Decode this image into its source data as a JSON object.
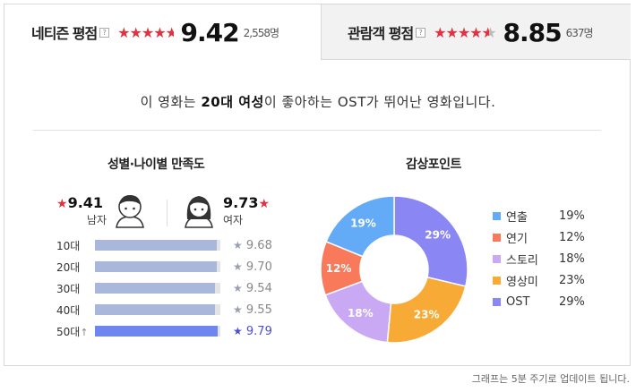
{
  "ratings": {
    "netizen": {
      "label": "네티즌 평점",
      "help": "?",
      "stars": "★★★★",
      "half": "★",
      "off": "",
      "score": "9.42",
      "count": "2,558명"
    },
    "audience": {
      "label": "관람객 평점",
      "help": "?",
      "stars": "★★★★",
      "half": "★",
      "off": "",
      "score": "8.85",
      "count": "637명"
    }
  },
  "summary": {
    "pre": "이 영화는 ",
    "highlight": "20대 여성",
    "post": "이 좋아하는 OST가 뛰어난 영화입니다."
  },
  "satisfaction": {
    "title": "성별·나이별 만족도",
    "male": {
      "star": "★",
      "score": "9.41",
      "label": "남자",
      "icon": "male-face-icon"
    },
    "female": {
      "star": "★",
      "score": "9.73",
      "label": "여자",
      "icon": "female-face-icon"
    },
    "ages": [
      {
        "label": "10대",
        "arrow": "",
        "score": "9.68",
        "value": 9.68,
        "highlight": false
      },
      {
        "label": "20대",
        "arrow": "",
        "score": "9.70",
        "value": 9.7,
        "highlight": false
      },
      {
        "label": "30대",
        "arrow": "",
        "score": "9.54",
        "value": 9.54,
        "highlight": false
      },
      {
        "label": "40대",
        "arrow": "",
        "score": "9.55",
        "value": 9.55,
        "highlight": false
      },
      {
        "label": "50대",
        "arrow": "↑",
        "score": "9.79",
        "value": 9.79,
        "highlight": true
      }
    ],
    "star": "★",
    "max": 10
  },
  "points": {
    "title": "감상포인트",
    "colors": {
      "directing": "#8b8bf2",
      "acting": "#f5ab3c",
      "story": "#c7aef2",
      "visual": "#fc7f5d",
      "ost": "#7ec3fa"
    },
    "items": [
      {
        "key": "directing",
        "name": "연출",
        "pct": "19%",
        "value": 19,
        "color": "#63aaf7"
      },
      {
        "key": "acting",
        "name": "연기",
        "pct": "12%",
        "value": 12,
        "color": "#f9795b"
      },
      {
        "key": "story",
        "name": "스토리",
        "pct": "18%",
        "value": 18,
        "color": "#c9a9f3"
      },
      {
        "key": "visual",
        "name": "영상미",
        "pct": "23%",
        "value": 23,
        "color": "#f8aa36"
      },
      {
        "key": "ost",
        "name": "OST",
        "pct": "29%",
        "value": 29,
        "color": "#8a86f4"
      }
    ]
  },
  "footnote": "그래프는 5분 주기로 업데이트 됩니다."
}
